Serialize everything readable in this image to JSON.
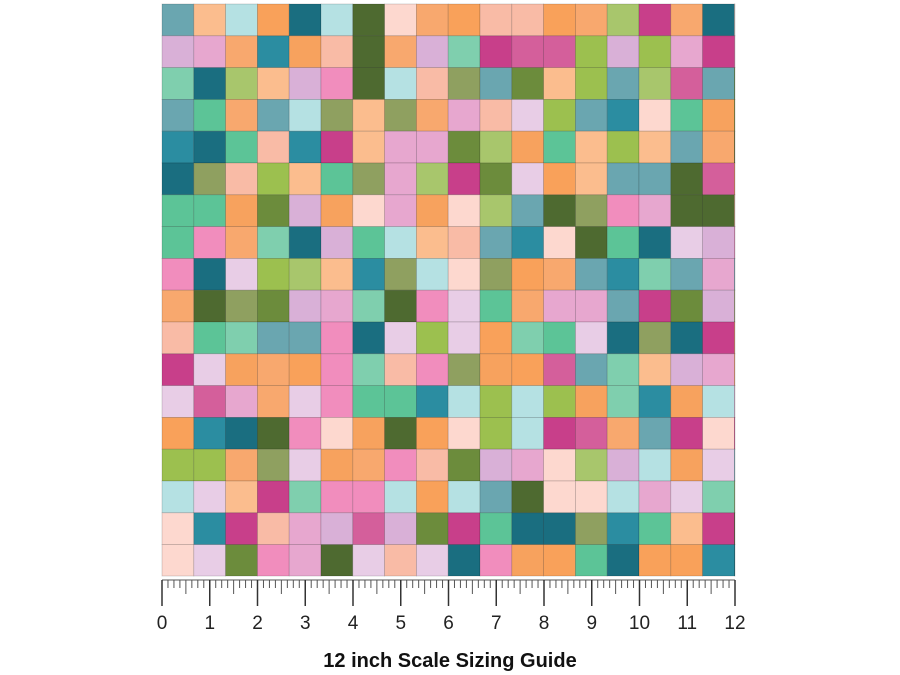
{
  "scale": {
    "ticks": [
      0,
      1,
      2,
      3,
      4,
      5,
      6,
      7,
      8,
      9,
      10,
      11,
      12
    ],
    "caption": "12 inch Scale Sizing Guide"
  }
}
